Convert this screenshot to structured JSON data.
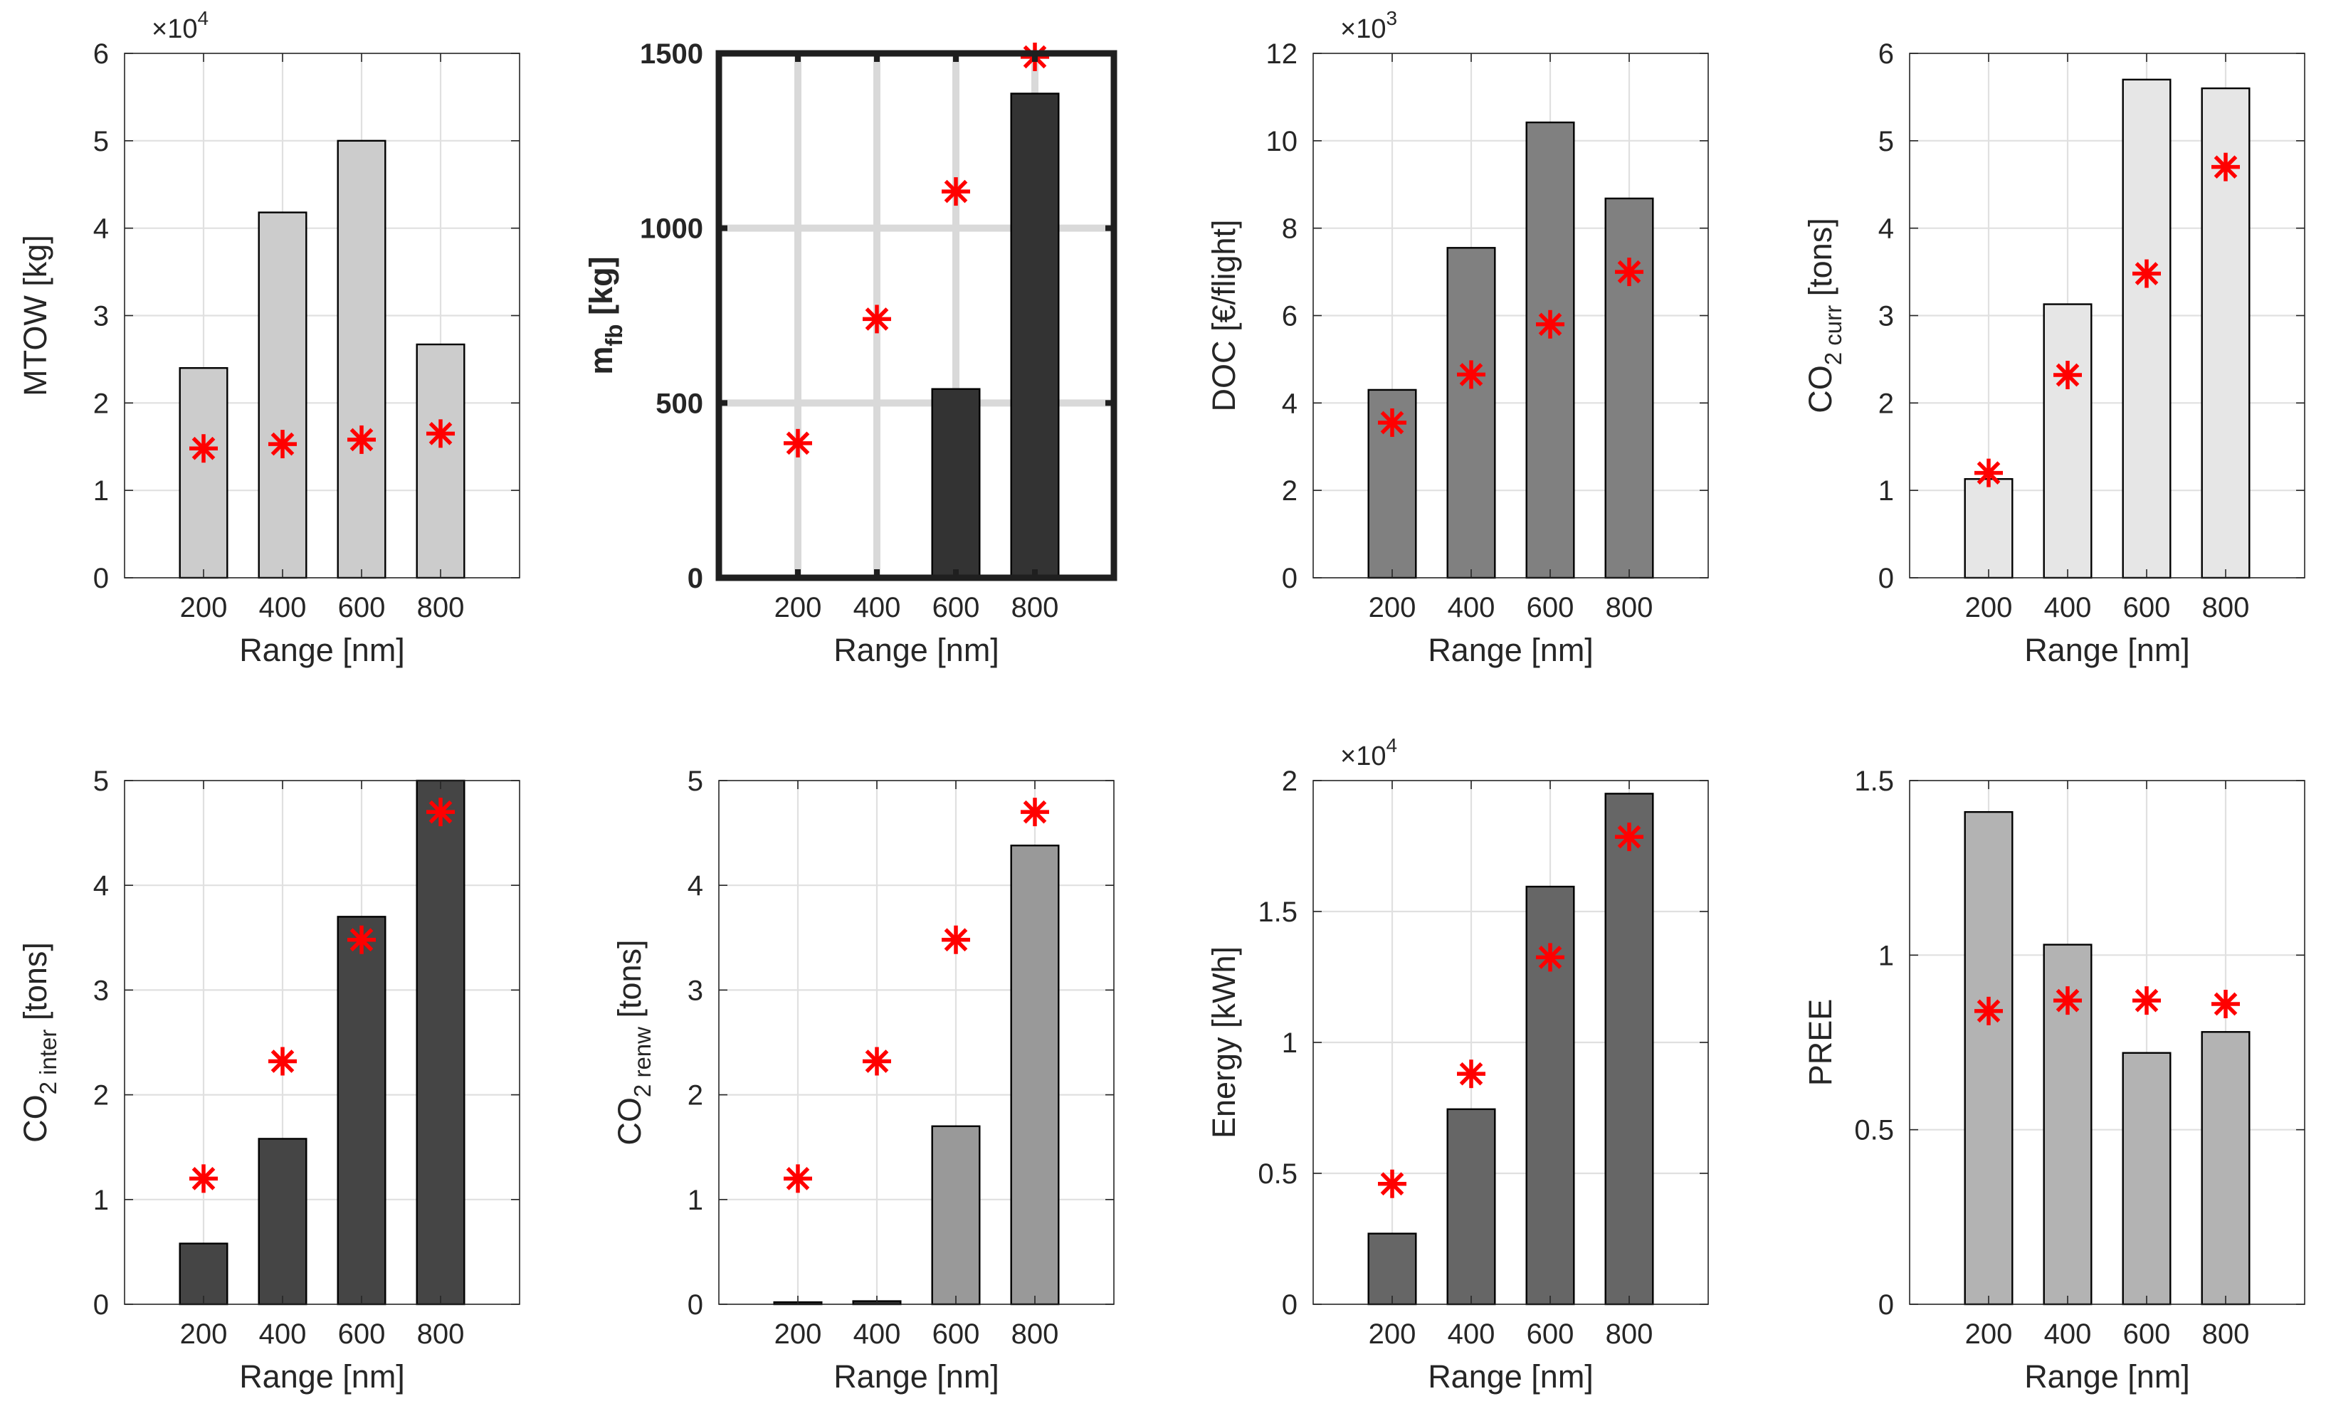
{
  "colors": {
    "marker": "#ff0000",
    "grid": "#e0e0e0",
    "axis": "#262626",
    "bar_edge": "#000000"
  },
  "chart_data": [
    {
      "type": "bar",
      "id": "mtow",
      "categories": [
        "200",
        "400",
        "600",
        "800"
      ],
      "values": [
        24000,
        41800,
        50000,
        26700
      ],
      "markers": [
        14800,
        15300,
        15800,
        16500
      ],
      "bar_color": "#cccccc",
      "ylabel": "MTOW [kg]",
      "xlabel": "Range [nm]",
      "ylim": [
        0,
        60000
      ],
      "yticks": [
        0,
        10000,
        20000,
        30000,
        40000,
        50000,
        60000
      ],
      "ytick_labels": [
        "0",
        "1",
        "2",
        "3",
        "4",
        "5",
        "6"
      ],
      "exponent_base": "×10",
      "exponent_power": "4"
    },
    {
      "type": "bar",
      "id": "mfb",
      "categories": [
        "200",
        "400",
        "600",
        "800"
      ],
      "values": [
        0,
        0,
        540,
        1385
      ],
      "markers": [
        385,
        740,
        1105,
        1490
      ],
      "bar_color": "#333333",
      "ylabel": "m",
      "ylabel_sub": "fb",
      "ylabel_suffix": " [kg]",
      "xlabel": "Range [nm]",
      "ylim": [
        0,
        1500
      ],
      "yticks": [
        0,
        500,
        1000,
        1500
      ],
      "ytick_labels": [
        "0",
        "500",
        "1000",
        "1500"
      ],
      "thick_frame": true
    },
    {
      "type": "bar",
      "id": "doc",
      "categories": [
        "200",
        "400",
        "600",
        "800"
      ],
      "values": [
        4300,
        7550,
        10420,
        8680
      ],
      "markers": [
        3550,
        4650,
        5800,
        7000
      ],
      "bar_color": "#808080",
      "ylabel": "DOC [€/flight]",
      "xlabel": "Range [nm]",
      "ylim": [
        0,
        12000
      ],
      "yticks": [
        0,
        2000,
        4000,
        6000,
        8000,
        10000,
        12000
      ],
      "ytick_labels": [
        "0",
        "2",
        "4",
        "6",
        "8",
        "10",
        "12"
      ],
      "exponent_base": "×10",
      "exponent_power": "3"
    },
    {
      "type": "bar",
      "id": "co2curr",
      "categories": [
        "200",
        "400",
        "600",
        "800"
      ],
      "values": [
        1.13,
        3.13,
        5.7,
        5.6
      ],
      "markers": [
        1.2,
        2.32,
        3.48,
        4.7
      ],
      "bar_color": "#e6e6e6",
      "ylabel": "CO",
      "ylabel_sub": "2 curr",
      "ylabel_suffix": " [tons]",
      "xlabel": "Range [nm]",
      "ylim": [
        0,
        6
      ],
      "yticks": [
        0,
        1,
        2,
        3,
        4,
        5,
        6
      ],
      "ytick_labels": [
        "0",
        "1",
        "2",
        "3",
        "4",
        "5",
        "6"
      ]
    },
    {
      "type": "bar",
      "id": "co2inter",
      "categories": [
        "200",
        "400",
        "600",
        "800"
      ],
      "values": [
        0.58,
        1.58,
        3.7,
        5.0
      ],
      "markers": [
        1.2,
        2.32,
        3.48,
        4.7
      ],
      "bar_color": "#454545",
      "ylabel": "CO",
      "ylabel_sub": "2 inter",
      "ylabel_suffix": " [tons]",
      "xlabel": "Range [nm]",
      "ylim": [
        0,
        5
      ],
      "yticks": [
        0,
        1,
        2,
        3,
        4,
        5
      ],
      "ytick_labels": [
        "0",
        "1",
        "2",
        "3",
        "4",
        "5"
      ]
    },
    {
      "type": "bar",
      "id": "co2renw",
      "categories": [
        "200",
        "400",
        "600",
        "800"
      ],
      "values": [
        0.02,
        0.03,
        1.7,
        4.38
      ],
      "markers": [
        1.2,
        2.32,
        3.48,
        4.7
      ],
      "bar_color": "#999999",
      "bar_colors": [
        "#333333",
        "#333333",
        "#999999",
        "#999999"
      ],
      "ylabel": "CO",
      "ylabel_sub": "2 renw",
      "ylabel_suffix": " [tons]",
      "xlabel": "Range [nm]",
      "ylim": [
        0,
        5
      ],
      "yticks": [
        0,
        1,
        2,
        3,
        4,
        5
      ],
      "ytick_labels": [
        "0",
        "1",
        "2",
        "3",
        "4",
        "5"
      ]
    },
    {
      "type": "bar",
      "id": "energy",
      "categories": [
        "200",
        "400",
        "600",
        "800"
      ],
      "values": [
        2700,
        7450,
        15950,
        19500
      ],
      "markers": [
        4600,
        8800,
        13250,
        17850
      ],
      "bar_color": "#666666",
      "ylabel": "Energy [kWh]",
      "xlabel": "Range [nm]",
      "ylim": [
        0,
        20000
      ],
      "yticks": [
        0,
        5000,
        10000,
        15000,
        20000
      ],
      "ytick_labels": [
        "0",
        "0.5",
        "1",
        "1.5",
        "2"
      ],
      "exponent_base": "×10",
      "exponent_power": "4"
    },
    {
      "type": "bar",
      "id": "pree",
      "categories": [
        "200",
        "400",
        "600",
        "800"
      ],
      "values": [
        1.41,
        1.03,
        0.72,
        0.78
      ],
      "markers": [
        0.84,
        0.87,
        0.87,
        0.86
      ],
      "bar_color": "#b3b3b3",
      "ylabel": "PREE",
      "xlabel": "Range [nm]",
      "ylim": [
        0,
        1.5
      ],
      "yticks": [
        0,
        0.5,
        1,
        1.5
      ],
      "ytick_labels": [
        "0",
        "0.5",
        "1",
        "1.5"
      ]
    }
  ]
}
